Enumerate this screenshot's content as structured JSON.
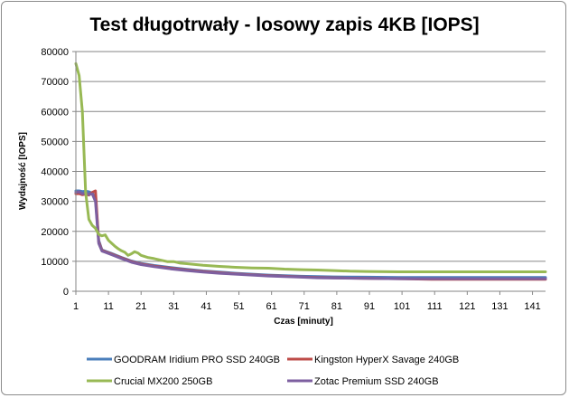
{
  "chart_data": {
    "type": "line",
    "title": "Test długotrwały - losowy zapis 4KB [IOPS]",
    "xlabel": "Czas [minuty]",
    "ylabel": "Wydajność [IOPS]",
    "xlim": [
      1,
      145
    ],
    "ylim": [
      0,
      80000
    ],
    "grid": "horizontal",
    "legend_position": "bottom",
    "x_ticks": [
      1,
      11,
      21,
      31,
      41,
      51,
      61,
      71,
      81,
      91,
      101,
      111,
      121,
      131,
      141
    ],
    "y_ticks": [
      0,
      10000,
      20000,
      30000,
      40000,
      50000,
      60000,
      70000,
      80000
    ],
    "series": [
      {
        "name": "GOODRAM Iridium PRO SSD 240GB",
        "color": "#4a7ebb",
        "points": [
          [
            1,
            33500
          ],
          [
            2,
            33500
          ],
          [
            3,
            33300
          ],
          [
            4,
            33400
          ],
          [
            5,
            33200
          ],
          [
            6,
            32800
          ],
          [
            7,
            31000
          ],
          [
            8,
            17000
          ],
          [
            9,
            13800
          ],
          [
            10,
            13400
          ],
          [
            12,
            12600
          ],
          [
            15,
            11300
          ],
          [
            18,
            10100
          ],
          [
            21,
            9300
          ],
          [
            25,
            8600
          ],
          [
            30,
            7900
          ],
          [
            35,
            7300
          ],
          [
            40,
            6800
          ],
          [
            45,
            6400
          ],
          [
            50,
            6000
          ],
          [
            55,
            5700
          ],
          [
            60,
            5400
          ],
          [
            65,
            5200
          ],
          [
            70,
            5000
          ],
          [
            75,
            4900
          ],
          [
            80,
            4800
          ],
          [
            90,
            4700
          ],
          [
            100,
            4600
          ],
          [
            110,
            4600
          ],
          [
            120,
            4600
          ],
          [
            130,
            4600
          ],
          [
            145,
            4600
          ]
        ]
      },
      {
        "name": "Kingston HyperX Savage 240GB",
        "color": "#be4b48",
        "points": [
          [
            1,
            32500
          ],
          [
            2,
            32600
          ],
          [
            3,
            32200
          ],
          [
            4,
            32400
          ],
          [
            5,
            32100
          ],
          [
            6,
            33000
          ],
          [
            7,
            33500
          ],
          [
            8,
            16500
          ],
          [
            9,
            13600
          ],
          [
            10,
            13200
          ],
          [
            12,
            12400
          ],
          [
            15,
            11100
          ],
          [
            18,
            9900
          ],
          [
            21,
            9100
          ],
          [
            25,
            8400
          ],
          [
            30,
            7700
          ],
          [
            35,
            7100
          ],
          [
            40,
            6600
          ],
          [
            45,
            6200
          ],
          [
            50,
            5800
          ],
          [
            55,
            5500
          ],
          [
            60,
            5200
          ],
          [
            65,
            5000
          ],
          [
            70,
            4800
          ],
          [
            75,
            4600
          ],
          [
            80,
            4500
          ],
          [
            90,
            4300
          ],
          [
            100,
            4200
          ],
          [
            110,
            4000
          ],
          [
            120,
            4000
          ],
          [
            130,
            4000
          ],
          [
            145,
            4000
          ]
        ]
      },
      {
        "name": "Crucial MX200 250GB",
        "color": "#98b954",
        "points": [
          [
            1,
            76000
          ],
          [
            2,
            72000
          ],
          [
            3,
            60000
          ],
          [
            4,
            33000
          ],
          [
            5,
            24000
          ],
          [
            6,
            22000
          ],
          [
            7,
            21000
          ],
          [
            8,
            19000
          ],
          [
            9,
            18500
          ],
          [
            10,
            18800
          ],
          [
            11,
            17000
          ],
          [
            12,
            16000
          ],
          [
            13,
            15000
          ],
          [
            14,
            14200
          ],
          [
            15,
            13500
          ],
          [
            16,
            13000
          ],
          [
            17,
            12000
          ],
          [
            18,
            12500
          ],
          [
            19,
            13200
          ],
          [
            20,
            12800
          ],
          [
            21,
            12000
          ],
          [
            23,
            11300
          ],
          [
            25,
            10900
          ],
          [
            27,
            10400
          ],
          [
            29,
            9900
          ],
          [
            31,
            9900
          ],
          [
            33,
            9400
          ],
          [
            35,
            9200
          ],
          [
            40,
            8700
          ],
          [
            45,
            8300
          ],
          [
            50,
            8000
          ],
          [
            55,
            7800
          ],
          [
            60,
            7700
          ],
          [
            65,
            7400
          ],
          [
            70,
            7200
          ],
          [
            75,
            7100
          ],
          [
            80,
            6900
          ],
          [
            85,
            6700
          ],
          [
            90,
            6600
          ],
          [
            100,
            6500
          ],
          [
            110,
            6500
          ],
          [
            120,
            6500
          ],
          [
            130,
            6500
          ],
          [
            145,
            6500
          ]
        ]
      },
      {
        "name": "Zotac Premium SSD 240GB",
        "color": "#7d5fa0",
        "points": [
          [
            1,
            33000
          ],
          [
            2,
            33200
          ],
          [
            3,
            32500
          ],
          [
            4,
            32800
          ],
          [
            5,
            32300
          ],
          [
            6,
            32500
          ],
          [
            7,
            30000
          ],
          [
            8,
            16000
          ],
          [
            9,
            13400
          ],
          [
            10,
            13000
          ],
          [
            12,
            12200
          ],
          [
            15,
            10900
          ],
          [
            18,
            9700
          ],
          [
            21,
            8900
          ],
          [
            25,
            8200
          ],
          [
            30,
            7500
          ],
          [
            35,
            6900
          ],
          [
            40,
            6400
          ],
          [
            45,
            6000
          ],
          [
            50,
            5700
          ],
          [
            55,
            5400
          ],
          [
            60,
            5100
          ],
          [
            65,
            4900
          ],
          [
            70,
            4700
          ],
          [
            75,
            4500
          ],
          [
            80,
            4400
          ],
          [
            90,
            4300
          ],
          [
            100,
            4200
          ],
          [
            110,
            4200
          ],
          [
            120,
            4200
          ],
          [
            130,
            4200
          ],
          [
            145,
            4200
          ]
        ]
      }
    ]
  }
}
